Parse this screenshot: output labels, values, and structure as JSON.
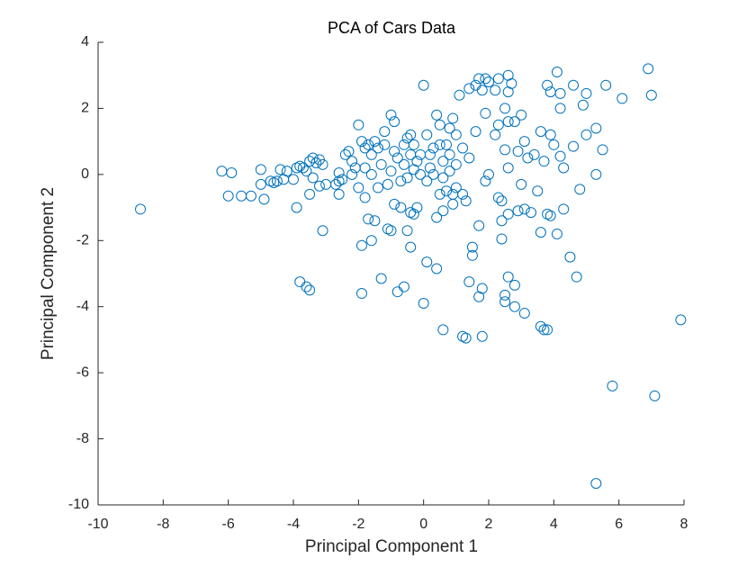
{
  "chart_data": {
    "type": "scatter",
    "title": "PCA of Cars Data",
    "x_label": "Principal Component 1",
    "y_label": "Principal Component 2",
    "color": "#0072bd",
    "xlim": [
      -10,
      8
    ],
    "xticks": [
      -10,
      -8,
      -6,
      -4,
      -2,
      0,
      2,
      4,
      6,
      8
    ],
    "ylim": [
      -10,
      4
    ],
    "yticks": [
      -10,
      -8,
      -6,
      -4,
      -2,
      0,
      2,
      4
    ],
    "grid": false,
    "x": [
      -8.7,
      -6.2,
      -5.9,
      -6.0,
      -5.6,
      -5.3,
      -5.0,
      -5.0,
      -4.9,
      -4.7,
      -4.6,
      -4.5,
      -4.4,
      -4.3,
      -4.2,
      -4.0,
      -3.9,
      -3.8,
      -3.7,
      -3.6,
      -3.5,
      -3.4,
      -3.3,
      -3.2,
      -3.1,
      -3.4,
      -3.5,
      -3.2,
      -3.0,
      -2.7,
      -2.6,
      -2.5,
      -2.3,
      -2.2,
      -2.1,
      -2.0,
      -1.9,
      -1.8,
      -1.7,
      -1.6,
      -1.5,
      -1.4,
      -1.3,
      -1.2,
      -1.0,
      -0.9,
      -0.8,
      -0.6,
      -0.5,
      -0.4,
      -0.3,
      -0.2,
      -0.1,
      0.0,
      0.1,
      0.2,
      0.3,
      0.4,
      0.5,
      0.6,
      0.7,
      0.8,
      0.9,
      1.0,
      1.1,
      1.3,
      -3.8,
      -3.6,
      -3.5,
      -3.1,
      -2.6,
      -1.9,
      -1.9,
      -1.6,
      -1.7,
      -1.5,
      -1.3,
      -1.1,
      -1.0,
      -0.8,
      -0.6,
      -0.5,
      -0.4,
      -0.4,
      -0.3,
      0.0,
      0.1,
      0.4,
      0.6,
      0.4,
      1.2,
      1.3,
      1.4,
      1.5,
      1.5,
      1.7,
      1.7,
      1.8,
      1.8,
      2.4,
      2.5,
      2.5,
      2.6,
      2.8,
      2.8,
      3.1,
      3.6,
      3.7,
      3.8,
      2.4,
      2.6,
      2.9,
      3.1,
      3.3,
      3.6,
      3.8,
      3.9,
      4.1,
      4.3,
      4.5,
      4.7,
      5.8,
      7.1,
      5.3,
      7.9,
      1.6,
      1.7,
      1.9,
      2.0,
      2.3,
      2.6,
      2.7,
      2.6,
      2.2,
      1.8,
      1.4,
      3.8,
      4.1,
      3.9,
      4.2,
      4.6,
      5.0,
      5.6,
      6.1,
      6.9,
      7.0,
      4.2,
      4.9,
      5.0,
      5.3,
      5.5,
      5.3,
      4.8,
      4.3,
      4.6,
      4.2,
      3.9,
      3.6,
      3.4,
      3.7,
      3.1,
      2.9,
      2.8,
      3.0,
      2.6,
      2.5,
      2.3,
      2.2,
      1.9,
      1.6,
      1.4,
      1.2,
      2.6,
      2.5,
      2.0,
      1.9,
      2.3,
      2.4,
      3.0,
      3.5,
      4.0,
      3.2,
      1.0,
      0.9,
      0.8,
      0.5,
      0.3,
      0.1,
      -0.1,
      -0.3,
      -0.5,
      -0.7,
      -1.0,
      -1.1,
      -1.4,
      -1.6,
      -1.8,
      -2.0,
      -1.8,
      0.5,
      0.7,
      0.9,
      1.2,
      0.6,
      0.8,
      -0.2,
      -0.7,
      -0.9,
      0.6,
      1.0,
      0.2,
      -0.4,
      -0.6,
      -0.9,
      -1.2,
      -2.4,
      -2.2,
      -2.6,
      -3.9
    ],
    "values": [
      -1.05,
      0.1,
      0.05,
      -0.65,
      -0.65,
      -0.65,
      0.15,
      -0.3,
      -0.75,
      -0.2,
      -0.25,
      -0.2,
      0.15,
      -0.15,
      0.1,
      -0.15,
      0.2,
      0.25,
      0.2,
      0.1,
      0.4,
      0.5,
      0.35,
      0.45,
      0.3,
      -0.1,
      -0.6,
      -0.35,
      -0.3,
      -0.3,
      0.05,
      -0.15,
      0.7,
      0.4,
      0.2,
      1.5,
      1.0,
      0.8,
      0.9,
      0.6,
      1.0,
      0.8,
      0.3,
      1.3,
      1.8,
      1.6,
      0.5,
      0.3,
      1.1,
      1.2,
      0.9,
      0.4,
      0.6,
      2.7,
      1.2,
      0.2,
      0.8,
      1.8,
      1.5,
      0.4,
      0.9,
      0.1,
      -0.6,
      -0.4,
      2.4,
      -0.8,
      -3.25,
      -3.4,
      -3.5,
      -1.7,
      -0.6,
      -2.15,
      -3.6,
      -2.0,
      -1.35,
      -1.4,
      -3.15,
      -1.65,
      -1.7,
      -3.55,
      -3.4,
      -1.7,
      -2.2,
      -1.15,
      -1.2,
      -3.9,
      -2.65,
      -2.85,
      -4.7,
      -1.3,
      -4.9,
      -4.95,
      -3.25,
      -2.2,
      -2.45,
      -1.55,
      -3.7,
      -4.9,
      -3.45,
      -1.95,
      -3.65,
      -3.85,
      -3.1,
      -3.35,
      -4.0,
      -4.2,
      -4.6,
      -4.7,
      -4.7,
      -1.4,
      -1.2,
      -1.1,
      -1.05,
      -1.15,
      -1.75,
      -1.2,
      -1.25,
      -1.8,
      -1.05,
      -2.5,
      -3.1,
      -6.4,
      -6.7,
      -9.35,
      -4.4,
      2.7,
      2.9,
      2.9,
      2.8,
      2.9,
      3.0,
      2.75,
      2.5,
      2.55,
      2.55,
      2.6,
      2.7,
      3.1,
      2.5,
      2.45,
      2.7,
      2.45,
      2.7,
      2.3,
      3.2,
      2.4,
      2.0,
      2.1,
      1.2,
      1.4,
      0.75,
      0.0,
      -0.45,
      0.2,
      0.85,
      0.55,
      1.2,
      1.3,
      0.6,
      0.4,
      1.0,
      0.7,
      1.6,
      1.8,
      1.6,
      2.0,
      1.5,
      1.2,
      1.85,
      1.3,
      0.5,
      0.8,
      0.2,
      0.75,
      0.0,
      -0.2,
      -0.7,
      -0.8,
      -0.3,
      -0.5,
      0.9,
      0.5,
      1.2,
      1.7,
      1.4,
      0.9,
      0.0,
      -0.2,
      0.0,
      0.15,
      -0.1,
      -0.2,
      0.1,
      -0.3,
      -0.4,
      0.0,
      0.2,
      -0.4,
      -0.7,
      -0.6,
      -0.5,
      -0.9,
      -0.6,
      -0.1,
      0.6,
      -1.0,
      -1.0,
      -0.9,
      -1.1,
      0.3,
      0.6,
      0.6,
      0.9,
      0.7,
      0.9,
      0.6,
      0.0,
      -0.2,
      -1.0
    ]
  }
}
